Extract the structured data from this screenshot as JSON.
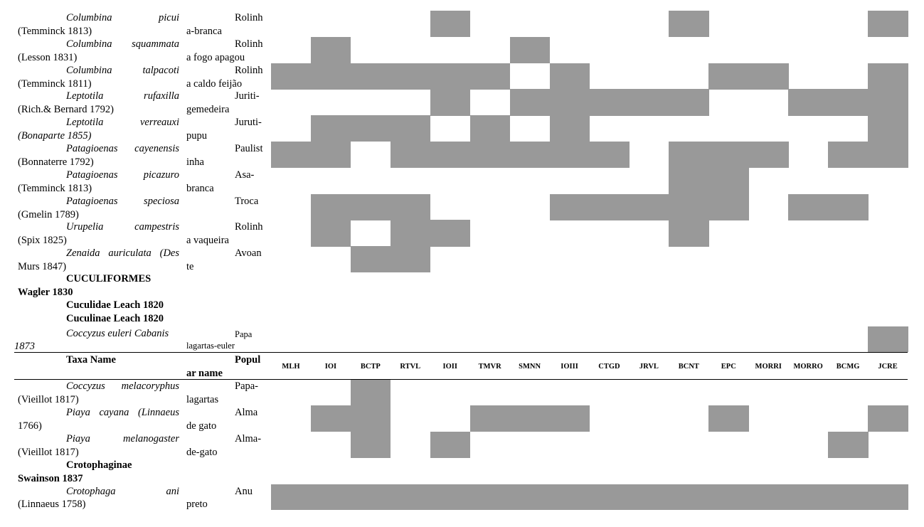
{
  "columns": {
    "taxa_name": "Taxa Name",
    "popular_name_1": "Popul",
    "popular_name_2": "ar name",
    "sites": [
      "MLH",
      "IOI",
      "BCTP",
      "RTVL",
      "IOII",
      "TMVR",
      "SMNN",
      "IOIII",
      "CTGD",
      "JRVL",
      "BCNT",
      "EPC",
      "MORRI",
      "MORRO",
      "BCMG",
      "JCRE"
    ]
  },
  "rows_top": [
    {
      "sp1": "Columbina picui",
      "sp2": "(Temminck 1813)",
      "pop1": "Rolinh",
      "pop2": "a-branca",
      "presence": [
        4,
        10,
        15
      ]
    },
    {
      "sp1": "Columbina squammata",
      "sp2": "(Lesson 1831)",
      "pop1": "Rolinh",
      "pop2": "a fogo apagou",
      "presence": [
        1,
        6
      ]
    },
    {
      "sp1": "Columbina talpacoti",
      "sp2": "(Temminck 1811)",
      "pop1": "Rolinh",
      "pop2": "a caldo feijão",
      "presence": [
        0,
        1,
        2,
        3,
        4,
        5,
        7,
        11,
        12,
        15
      ]
    },
    {
      "sp1": "Leptotila rufaxilla",
      "sp2": "(Rich.& Bernard 1792)",
      "pop1": "Juriti-",
      "pop2": "gemedeira",
      "presence": [
        4,
        6,
        7,
        8,
        9,
        10,
        13,
        14,
        15
      ]
    },
    {
      "sp1": "Leptotila verreauxi",
      "sp2": "(Bonaparte 1855)",
      "pop1": "Juruti-",
      "pop2": "pupu",
      "presence": [
        1,
        2,
        3,
        5,
        7,
        15
      ]
    },
    {
      "sp1": "Patagioenas cayenensis",
      "sp2": "(Bonnaterre 1792)",
      "pop1": "Paulist",
      "pop2": "inha",
      "presence": [
        0,
        1,
        3,
        4,
        5,
        6,
        7,
        8,
        10,
        11,
        12,
        14,
        15
      ]
    },
    {
      "sp1": "Patagioenas picazuro",
      "sp2": "(Temminck 1813)",
      "pop1": "Asa-",
      "pop2": "branca",
      "presence": [
        10,
        11
      ]
    },
    {
      "sp1": "Patagioenas speciosa",
      "sp2": "(Gmelin 1789)",
      "pop1": "Troca",
      "pop2": "",
      "presence": [
        1,
        2,
        3,
        7,
        8,
        9,
        10,
        11,
        13,
        14
      ]
    },
    {
      "sp1": "Urupelia campestris",
      "sp2": "(Spix 1825)",
      "pop1": "Rolinh",
      "pop2": "a vaqueira",
      "presence": [
        1,
        3,
        4,
        10
      ]
    },
    {
      "sp1": "Zenaida auriculata (Des",
      "sp2": "Murs 1847)",
      "pop1": "Avoan",
      "pop2": "te",
      "presence": [
        2,
        3
      ]
    }
  ],
  "order_line1": "CUCULIFORMES",
  "order_line2": "Wagler 1830",
  "family": "Cuculidae Leach 1820",
  "subfamily1": "Cuculinae Leach 1820",
  "euleri": {
    "sp1": "Coccyzus euleri Cabanis",
    "sp2": "1873",
    "pop1": "Papa",
    "pop2": "lagartas-euler",
    "presence": [
      15
    ]
  },
  "rows_bottom": [
    {
      "sp1": "Coccyzus melacoryphus",
      "sp2": "(Vieillot 1817)",
      "pop1": "Papa-",
      "pop2": "lagartas",
      "presence": [
        2
      ]
    },
    {
      "sp1": "Piaya cayana (Linnaeus",
      "sp2": "1766)",
      "pop1": "Alma",
      "pop2": "de gato",
      "presence": [
        1,
        2,
        5,
        6,
        7,
        11,
        15
      ]
    },
    {
      "sp1": "Piaya melanogaster",
      "sp2": "(Vieillot 1817)",
      "pop1": "Alma-",
      "pop2": "de-gato",
      "presence": [
        2,
        4,
        14
      ]
    }
  ],
  "subfamily2_line1": "Crotophaginae",
  "subfamily2_line2": "Swainson 1837",
  "ani": {
    "sp1": "Crotophaga ani",
    "sp2": "(Linnaeus 1758)",
    "pop1": "Anu",
    "pop2": "preto",
    "presence": [
      0,
      1,
      2,
      3,
      4,
      5,
      6,
      7,
      8,
      9,
      10,
      11,
      12,
      13,
      14,
      15
    ]
  }
}
